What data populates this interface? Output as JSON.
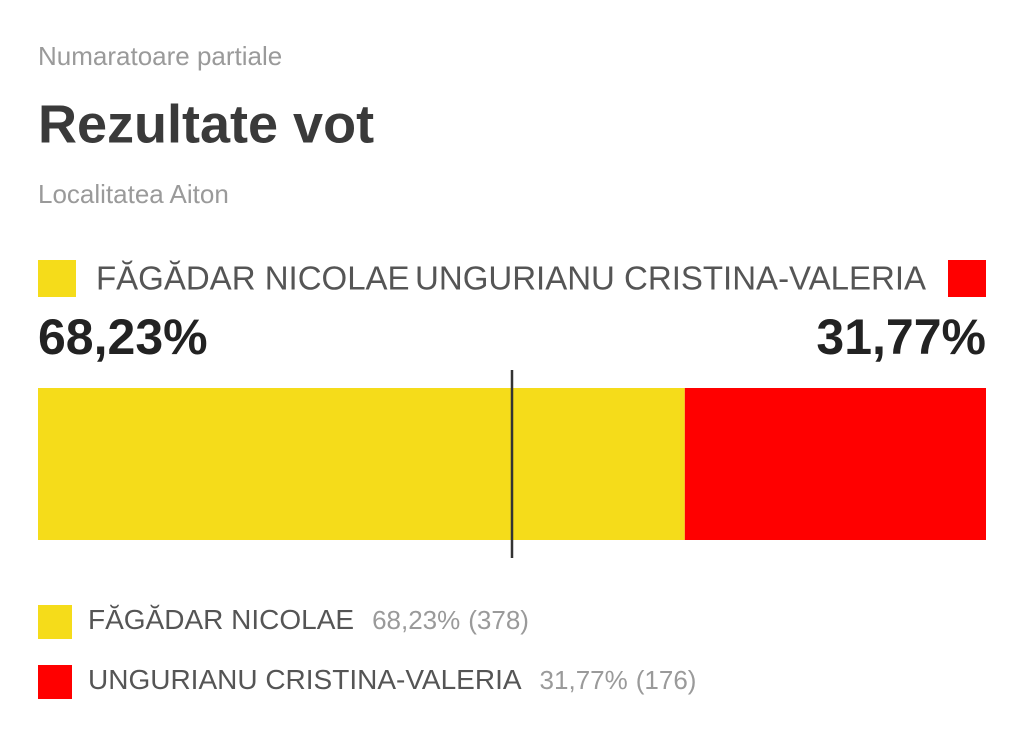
{
  "chart_data": {
    "type": "split-bar",
    "kicker": "Numaratoare partiale",
    "title": "Rezultate vot",
    "subtitle": "Localitatea Aiton",
    "series": [
      {
        "name": "FĂGĂDAR NICOLAE",
        "color": "#f5dc1a",
        "values": [
          68.23
        ],
        "value_labels": [
          "68,23%"
        ],
        "votes": [
          378
        ],
        "vote_labels": [
          "(378)"
        ]
      },
      {
        "name": "UNGURIANU CRISTINA-VALERIA",
        "color": "#ff0000",
        "values": [
          31.77
        ],
        "value_labels": [
          "31,77%"
        ],
        "votes": [
          176
        ],
        "vote_labels": [
          "(176)"
        ]
      }
    ]
  }
}
